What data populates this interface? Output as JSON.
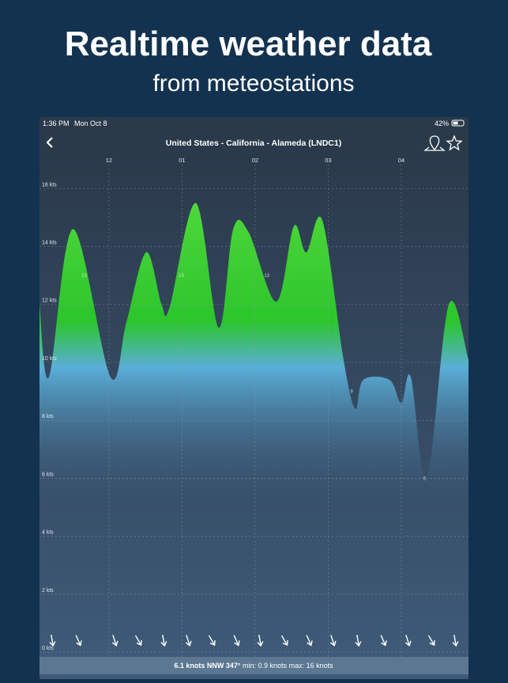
{
  "header": {
    "title": "Realtime weather data",
    "subtitle": "from meteostations"
  },
  "status_bar": {
    "time": "1:36 PM",
    "date": "Mon Oct 8",
    "battery": "42%"
  },
  "nav": {
    "title": "United States - California - Alameda (LNDC1)"
  },
  "chart_data": {
    "type": "area",
    "x": [
      11.05,
      11.18,
      11.51,
      12.02,
      12.24,
      12.51,
      12.72,
      12.83,
      13.19,
      13.5,
      13.7,
      13.91,
      14.29,
      14.53,
      14.7,
      14.92,
      15.21,
      15.37,
      15.48,
      15.84,
      16.0,
      16.13,
      16.35,
      16.65,
      16.92
    ],
    "values": [
      12.0,
      9.5,
      14.6,
      9.5,
      11.4,
      13.8,
      12.0,
      11.9,
      15.5,
      11.2,
      14.6,
      14.5,
      12.1,
      14.7,
      13.8,
      14.9,
      10.1,
      8.4,
      9.4,
      9.4,
      8.6,
      9.5,
      6.0,
      12.0,
      10.1
    ],
    "xlim": [
      11.05,
      16.92
    ],
    "xticks": [
      12,
      {
        "value": 13,
        "label": "01"
      },
      {
        "value": 14,
        "label": "02"
      },
      {
        "value": 15,
        "label": "03"
      },
      {
        "value": 16,
        "label": "04"
      }
    ],
    "ylim": [
      -0.16,
      17.1
    ],
    "yticks": [
      {
        "value": 0,
        "label": "0 kts"
      },
      {
        "value": 2,
        "label": "2 kts"
      },
      {
        "value": 4,
        "label": "4 kts"
      },
      {
        "value": 6,
        "label": "6 kts"
      },
      {
        "value": 8,
        "label": "8 kts"
      },
      {
        "value": 10,
        "label": "10 kts"
      },
      {
        "value": 12,
        "label": "12 kts"
      },
      {
        "value": 14,
        "label": "14 kts"
      },
      {
        "value": 16,
        "label": "16 kts"
      }
    ],
    "grid": true,
    "markers": [
      {
        "x": 11.66,
        "y": 13
      },
      {
        "x": 12.99,
        "y": 13
      },
      {
        "x": 14.16,
        "y": 13
      },
      {
        "x": 15.32,
        "y": 9
      },
      {
        "x": 16.32,
        "y": 6
      }
    ]
  },
  "footer": {
    "current": "6.1 knots",
    "direction": "NNW 347°",
    "min": "min: 0.9 knots",
    "max": "max: 16 knots"
  }
}
